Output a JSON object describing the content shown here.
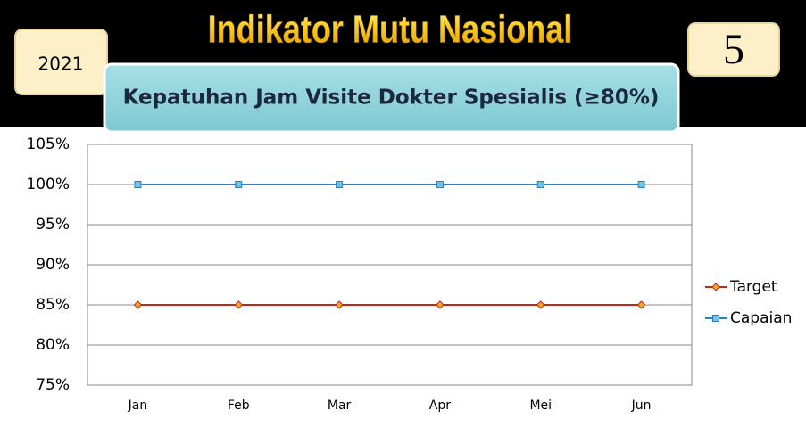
{
  "header": {
    "title": "Indikator Mutu Nasional",
    "year": "2021",
    "number": "5"
  },
  "chart_data": {
    "type": "line",
    "title": "Kepatuhan Jam Visite Dokter Spesialis (≥80%)",
    "categories": [
      "Jan",
      "Feb",
      "Mar",
      "Apr",
      "Mei",
      "Jun"
    ],
    "series": [
      {
        "name": "Target",
        "color": "#c0281c",
        "values": [
          85,
          85,
          85,
          85,
          85,
          85
        ]
      },
      {
        "name": "Capaian",
        "color": "#2f7ebd",
        "values": [
          100,
          100,
          100,
          100,
          100,
          100
        ]
      }
    ],
    "ylim": [
      75,
      105
    ],
    "yticks": [
      {
        "value": 75,
        "label": "75%"
      },
      {
        "value": 80,
        "label": "80%"
      },
      {
        "value": 85,
        "label": "85%"
      },
      {
        "value": 90,
        "label": "90%"
      },
      {
        "value": 95,
        "label": "95%"
      },
      {
        "value": 100,
        "label": "100%"
      },
      {
        "value": 105,
        "label": "105%"
      }
    ],
    "grid": true,
    "legend": "right"
  }
}
